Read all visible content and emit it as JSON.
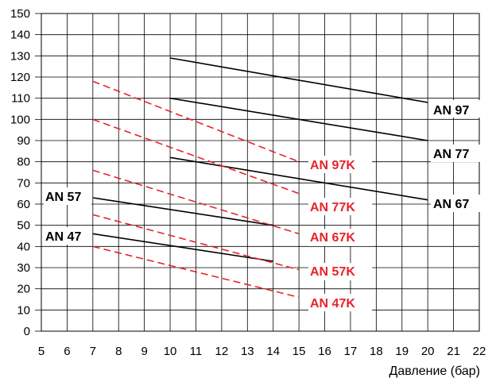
{
  "chart_data": {
    "type": "line",
    "title": "",
    "xlabel": "Давление (бар)",
    "ylabel": "",
    "xlim": [
      5,
      22
    ],
    "ylim": [
      0,
      150
    ],
    "x_ticks": [
      5,
      6,
      7,
      8,
      9,
      10,
      11,
      12,
      13,
      14,
      15,
      16,
      17,
      18,
      19,
      20,
      21,
      22
    ],
    "y_ticks": [
      0,
      10,
      20,
      30,
      40,
      50,
      60,
      70,
      80,
      90,
      100,
      110,
      120,
      130,
      140,
      150
    ],
    "grid": true,
    "series": [
      {
        "name": "AN 97",
        "color": "#000000",
        "dash": false,
        "x": [
          10,
          20
        ],
        "y": [
          129,
          108
        ]
      },
      {
        "name": "AN 77",
        "color": "#000000",
        "dash": false,
        "x": [
          10,
          20
        ],
        "y": [
          110,
          90
        ]
      },
      {
        "name": "AN 67",
        "color": "#000000",
        "dash": false,
        "x": [
          10,
          20
        ],
        "y": [
          82,
          62
        ]
      },
      {
        "name": "AN 57",
        "color": "#000000",
        "dash": false,
        "x": [
          7,
          14
        ],
        "y": [
          63,
          50
        ]
      },
      {
        "name": "AN 47",
        "color": "#000000",
        "dash": false,
        "x": [
          7,
          14
        ],
        "y": [
          46,
          33
        ]
      },
      {
        "name": "AN 97K",
        "color": "#e8232b",
        "dash": true,
        "x": [
          7,
          15
        ],
        "y": [
          118,
          80
        ]
      },
      {
        "name": "AN 77K",
        "color": "#e8232b",
        "dash": true,
        "x": [
          7,
          15
        ],
        "y": [
          100,
          65
        ]
      },
      {
        "name": "AN 67K",
        "color": "#e8232b",
        "dash": true,
        "x": [
          7,
          15
        ],
        "y": [
          76,
          46
        ]
      },
      {
        "name": "AN 57K",
        "color": "#e8232b",
        "dash": true,
        "x": [
          7,
          15
        ],
        "y": [
          55,
          29
        ]
      },
      {
        "name": "AN 47K",
        "color": "#e8232b",
        "dash": true,
        "x": [
          7,
          15
        ],
        "y": [
          40,
          16
        ]
      }
    ]
  }
}
